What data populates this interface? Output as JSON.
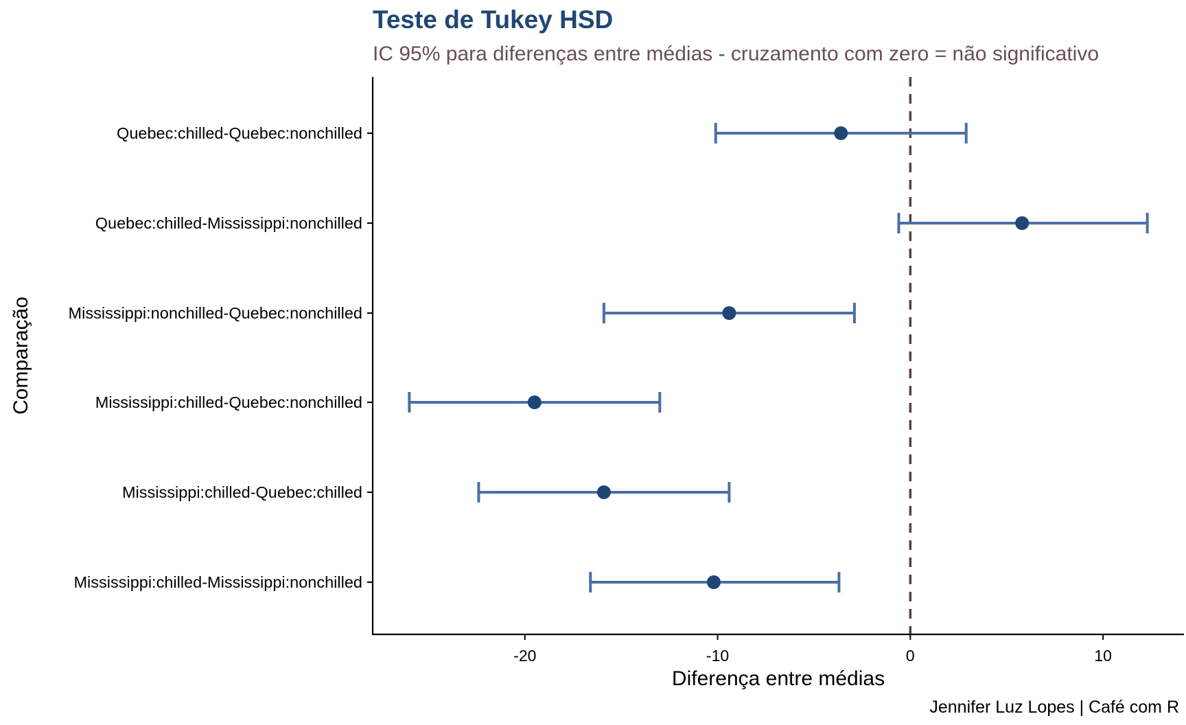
{
  "title": "Teste de Tukey HSD",
  "subtitle": "IC 95% para diferenças entre médias - cruzamento com zero = não significativo",
  "caption": "Jennifer Luz Lopes | Café com R",
  "colors": {
    "title": "#1F4675",
    "subtitle": "#6B4F4F",
    "errorbar": "#4A6FA5",
    "point": "#1F4675",
    "refline": "#5C4040",
    "axis": "#000000"
  },
  "chart_data": {
    "type": "errorbar",
    "title": "Teste de Tukey HSD",
    "subtitle": "IC 95% para diferenças entre médias - cruzamento com zero = não significativo",
    "xlabel": "Diferença entre médias",
    "ylabel": "Comparação",
    "xlim": [
      -27.9,
      14.2
    ],
    "xticks": [
      -20,
      -10,
      0,
      10
    ],
    "xtick_labels": [
      "-20",
      "-10",
      "0",
      "10"
    ],
    "reference_line": {
      "x": 0,
      "style": "dashed"
    },
    "grid": false,
    "comparisons": [
      {
        "label": "Quebec:chilled-Quebec:nonchilled",
        "diff": -3.6,
        "lwr": -10.1,
        "upr": 2.9
      },
      {
        "label": "Quebec:chilled-Mississippi:nonchilled",
        "diff": 5.8,
        "lwr": -0.6,
        "upr": 12.3
      },
      {
        "label": "Mississippi:nonchilled-Quebec:nonchilled",
        "diff": -9.4,
        "lwr": -15.9,
        "upr": -2.9
      },
      {
        "label": "Mississippi:chilled-Quebec:nonchilled",
        "diff": -19.5,
        "lwr": -26.0,
        "upr": -13.0
      },
      {
        "label": "Mississippi:chilled-Quebec:chilled",
        "diff": -15.9,
        "lwr": -22.4,
        "upr": -9.4
      },
      {
        "label": "Mississippi:chilled-Mississippi:nonchilled",
        "diff": -10.2,
        "lwr": -16.6,
        "upr": -3.7
      }
    ]
  }
}
